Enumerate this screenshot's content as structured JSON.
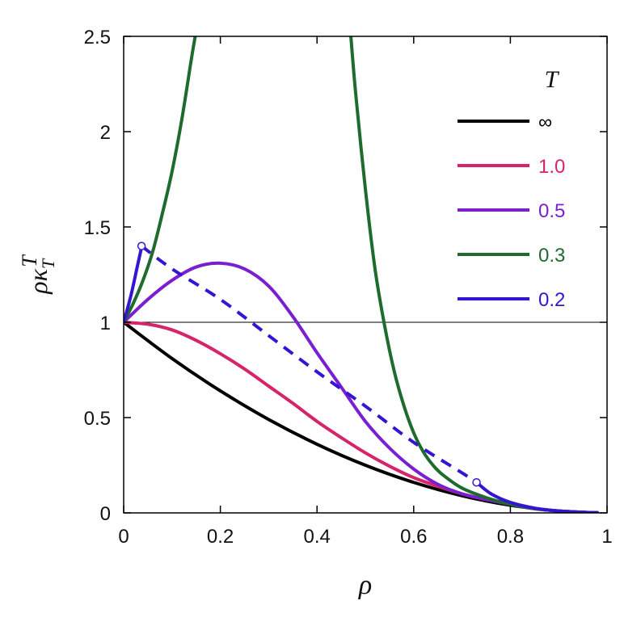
{
  "chart_data": {
    "type": "line",
    "title": "",
    "xlabel": "ρ",
    "ylabel": "ρκ",
    "ylabel_sub": "T",
    "ylabel_sup": "T",
    "xlim": [
      0,
      1
    ],
    "ylim": [
      0,
      2.5
    ],
    "x_ticks": [
      0,
      0.2,
      0.4,
      0.6,
      0.8,
      1
    ],
    "x_tick_labels": [
      "0",
      "0.2",
      "0.4",
      "0.6",
      "0.8",
      "1"
    ],
    "y_ticks": [
      0,
      0.5,
      1,
      1.5,
      2,
      2.5
    ],
    "y_tick_labels": [
      "0",
      "0.5",
      "1",
      "1.5",
      "2",
      "2.5"
    ],
    "reference_line_y": 1,
    "legend_title": "T",
    "legend_position": "top-right",
    "series": [
      {
        "name": "∞",
        "color": "#000000",
        "style": "solid",
        "x": [
          0,
          0.1,
          0.2,
          0.3,
          0.4,
          0.5,
          0.6,
          0.7,
          0.8,
          0.9,
          0.98
        ],
        "y": [
          1,
          0.81,
          0.64,
          0.49,
          0.36,
          0.25,
          0.16,
          0.09,
          0.04,
          0.01,
          0.0004
        ]
      },
      {
        "name": "1.0",
        "color": "#d6246a",
        "style": "solid",
        "x": [
          0,
          0.05,
          0.1,
          0.15,
          0.2,
          0.25,
          0.3,
          0.35,
          0.4,
          0.45,
          0.5,
          0.55,
          0.6,
          0.65,
          0.7,
          0.75,
          0.8,
          0.85,
          0.9,
          0.95,
          0.98
        ],
        "y": [
          1,
          0.99,
          0.96,
          0.905,
          0.835,
          0.755,
          0.665,
          0.575,
          0.48,
          0.395,
          0.315,
          0.245,
          0.185,
          0.14,
          0.1,
          0.07,
          0.045,
          0.022,
          0.01,
          0.003,
          0.0008
        ]
      },
      {
        "name": "0.5",
        "color": "#7a1ed1",
        "style": "solid",
        "x": [
          0,
          0.05,
          0.1,
          0.15,
          0.2,
          0.25,
          0.3,
          0.35,
          0.4,
          0.45,
          0.5,
          0.55,
          0.6,
          0.65,
          0.7,
          0.75,
          0.8,
          0.85,
          0.9,
          0.95,
          0.98
        ],
        "y": [
          1,
          1.12,
          1.22,
          1.29,
          1.31,
          1.28,
          1.19,
          1.03,
          0.84,
          0.66,
          0.48,
          0.34,
          0.23,
          0.15,
          0.1,
          0.07,
          0.045,
          0.022,
          0.01,
          0.003,
          0.0008
        ]
      },
      {
        "name": "0.3",
        "color": "#1f6b2e",
        "style": "solid",
        "x": [
          0,
          0.02,
          0.04,
          0.06,
          0.08,
          0.1,
          0.12,
          0.14,
          0.148,
          null,
          0.47,
          0.48,
          0.5,
          0.52,
          0.54,
          0.56,
          0.58,
          0.6,
          0.62,
          0.64,
          0.66,
          0.7,
          0.75,
          0.8,
          0.85,
          0.9,
          0.95,
          0.98
        ],
        "y": [
          1,
          1.1,
          1.22,
          1.37,
          1.57,
          1.79,
          2.06,
          2.38,
          2.5,
          null,
          2.5,
          2.2,
          1.7,
          1.28,
          0.98,
          0.74,
          0.56,
          0.42,
          0.32,
          0.25,
          0.2,
          0.13,
          0.08,
          0.045,
          0.022,
          0.01,
          0.003,
          0.0008
        ]
      },
      {
        "name": "0.2",
        "color": "#3416d2",
        "style": "solid",
        "x": [
          0,
          0.015,
          0.028,
          0.035,
          0.037,
          null,
          0.73,
          0.76,
          0.8,
          0.85,
          0.9,
          0.95,
          0.98
        ],
        "y": [
          1,
          1.14,
          1.29,
          1.37,
          1.4,
          null,
          0.16,
          0.1,
          0.055,
          0.025,
          0.01,
          0.003,
          0.0008
        ]
      },
      {
        "name": "",
        "color": "#3416d2",
        "style": "dashed",
        "x": [
          0.037,
          0.1,
          0.2,
          0.3,
          0.4,
          0.5,
          0.6,
          0.7,
          0.73
        ],
        "y": [
          1.4,
          1.28,
          1.12,
          0.93,
          0.74,
          0.56,
          0.37,
          0.21,
          0.16
        ]
      }
    ],
    "markers": [
      {
        "x": 0.037,
        "y": 1.4
      },
      {
        "x": 0.73,
        "y": 0.16
      }
    ]
  }
}
